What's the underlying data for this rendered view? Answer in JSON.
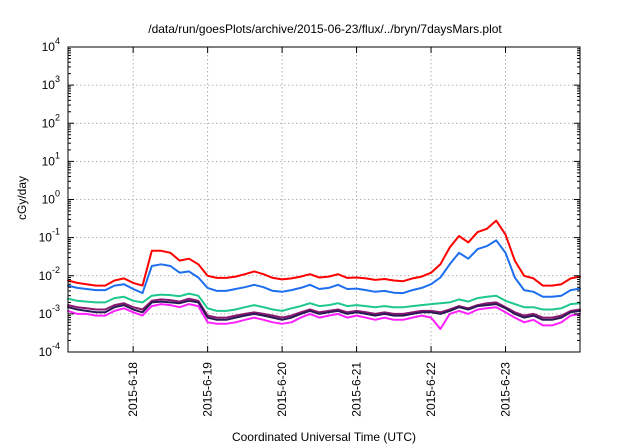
{
  "chart_data": {
    "type": "line",
    "title": "/data/run/goesPlots/archive/2015-06-23/flux/../bryn/7daysMars.plot",
    "xlabel": "Coordinated Universal Time (UTC)",
    "ylabel": "cGy/day",
    "yscale": "log",
    "ylim": [
      0.0001,
      10000
    ],
    "y_ticks": [
      {
        "value": 0.0001,
        "base": "10",
        "exp": "-4"
      },
      {
        "value": 0.001,
        "base": "10",
        "exp": "-3"
      },
      {
        "value": 0.01,
        "base": "10",
        "exp": "-2"
      },
      {
        "value": 0.1,
        "base": "10",
        "exp": "-1"
      },
      {
        "value": 1,
        "base": "10",
        "exp": "0"
      },
      {
        "value": 10,
        "base": "10",
        "exp": "1"
      },
      {
        "value": 100,
        "base": "10",
        "exp": "2"
      },
      {
        "value": 1000,
        "base": "10",
        "exp": "3"
      },
      {
        "value": 10000,
        "base": "10",
        "exp": "4"
      }
    ],
    "xlim": [
      "2015-06-17T03:00",
      "2015-06-24T00:00"
    ],
    "x_ticks": [
      "2015-6-18",
      "2015-6-19",
      "2015-6-20",
      "2015-6-21",
      "2015-6-22",
      "2015-6-23"
    ],
    "x_tick_dates": [
      "2015-06-18T00:00",
      "2015-06-19T00:00",
      "2015-06-20T00:00",
      "2015-06-21T00:00",
      "2015-06-22T00:00",
      "2015-06-23T00:00"
    ],
    "grid": true,
    "x": [
      "2015-06-17T03:00",
      "2015-06-17T06:00",
      "2015-06-17T09:00",
      "2015-06-17T12:00",
      "2015-06-17T15:00",
      "2015-06-17T18:00",
      "2015-06-17T21:00",
      "2015-06-18T00:00",
      "2015-06-18T03:00",
      "2015-06-18T06:00",
      "2015-06-18T09:00",
      "2015-06-18T12:00",
      "2015-06-18T15:00",
      "2015-06-18T18:00",
      "2015-06-18T21:00",
      "2015-06-19T00:00",
      "2015-06-19T03:00",
      "2015-06-19T06:00",
      "2015-06-19T09:00",
      "2015-06-19T12:00",
      "2015-06-19T15:00",
      "2015-06-19T18:00",
      "2015-06-19T21:00",
      "2015-06-20T00:00",
      "2015-06-20T03:00",
      "2015-06-20T06:00",
      "2015-06-20T09:00",
      "2015-06-20T12:00",
      "2015-06-20T15:00",
      "2015-06-20T18:00",
      "2015-06-20T21:00",
      "2015-06-21T00:00",
      "2015-06-21T03:00",
      "2015-06-21T06:00",
      "2015-06-21T09:00",
      "2015-06-21T12:00",
      "2015-06-21T15:00",
      "2015-06-21T18:00",
      "2015-06-21T21:00",
      "2015-06-22T00:00",
      "2015-06-22T03:00",
      "2015-06-22T06:00",
      "2015-06-22T09:00",
      "2015-06-22T12:00",
      "2015-06-22T15:00",
      "2015-06-22T18:00",
      "2015-06-22T21:00",
      "2015-06-23T00:00",
      "2015-06-23T03:00",
      "2015-06-23T06:00",
      "2015-06-23T09:00",
      "2015-06-23T12:00",
      "2015-06-23T15:00",
      "2015-06-23T18:00",
      "2015-06-23T21:00",
      "2015-06-24T00:00"
    ],
    "series": [
      {
        "color": "#ff0000",
        "values": [
          0.0075,
          0.0065,
          0.006,
          0.0055,
          0.0055,
          0.0075,
          0.0085,
          0.0065,
          0.0055,
          0.045,
          0.045,
          0.04,
          0.025,
          0.028,
          0.02,
          0.01,
          0.0088,
          0.0088,
          0.0095,
          0.011,
          0.013,
          0.011,
          0.0088,
          0.008,
          0.0085,
          0.0095,
          0.011,
          0.009,
          0.0095,
          0.011,
          0.0088,
          0.009,
          0.0085,
          0.0078,
          0.0082,
          0.0075,
          0.0072,
          0.0085,
          0.0095,
          0.012,
          0.02,
          0.055,
          0.11,
          0.075,
          0.14,
          0.17,
          0.28,
          0.12,
          0.025,
          0.01,
          0.0085,
          0.0055,
          0.0055,
          0.006,
          0.0085,
          0.0095
        ]
      },
      {
        "color": "#1e6ef0",
        "values": [
          0.0055,
          0.0048,
          0.0045,
          0.0042,
          0.0042,
          0.0055,
          0.006,
          0.0045,
          0.0035,
          0.018,
          0.02,
          0.018,
          0.012,
          0.013,
          0.009,
          0.0048,
          0.004,
          0.004,
          0.0045,
          0.005,
          0.0058,
          0.005,
          0.004,
          0.0038,
          0.0042,
          0.0048,
          0.0058,
          0.0045,
          0.0048,
          0.0058,
          0.0045,
          0.0046,
          0.0042,
          0.0038,
          0.004,
          0.0036,
          0.0035,
          0.0042,
          0.0048,
          0.006,
          0.009,
          0.02,
          0.04,
          0.028,
          0.05,
          0.06,
          0.085,
          0.04,
          0.009,
          0.0042,
          0.0038,
          0.0028,
          0.0028,
          0.003,
          0.0042,
          0.0046
        ]
      },
      {
        "color": "#1ec88c",
        "values": [
          0.0025,
          0.0022,
          0.0021,
          0.002,
          0.002,
          0.0026,
          0.0028,
          0.0022,
          0.002,
          0.003,
          0.0032,
          0.0031,
          0.0029,
          0.0034,
          0.003,
          0.0014,
          0.0012,
          0.0012,
          0.0013,
          0.0015,
          0.0017,
          0.0015,
          0.0013,
          0.0012,
          0.0014,
          0.0016,
          0.0019,
          0.0016,
          0.0017,
          0.0019,
          0.0016,
          0.0017,
          0.0016,
          0.0015,
          0.0016,
          0.0015,
          0.0015,
          0.0016,
          0.0017,
          0.0018,
          0.0019,
          0.002,
          0.0024,
          0.0021,
          0.0026,
          0.0028,
          0.003,
          0.0022,
          0.0018,
          0.0015,
          0.0015,
          0.0013,
          0.0013,
          0.0014,
          0.0018,
          0.0019
        ]
      },
      {
        "color": "#8a1870",
        "values": [
          0.0017,
          0.0015,
          0.0014,
          0.0013,
          0.0013,
          0.0017,
          0.0019,
          0.0015,
          0.0013,
          0.0022,
          0.0024,
          0.0023,
          0.0021,
          0.0025,
          0.0022,
          0.0009,
          0.0008,
          0.0008,
          0.0009,
          0.001,
          0.0011,
          0.001,
          0.0009,
          0.0008,
          0.0009,
          0.0011,
          0.0013,
          0.0011,
          0.0012,
          0.0013,
          0.0011,
          0.0012,
          0.0011,
          0.001,
          0.0011,
          0.001,
          0.001,
          0.0011,
          0.0012,
          0.0012,
          0.0011,
          0.0013,
          0.0016,
          0.0014,
          0.0017,
          0.0019,
          0.002,
          0.0015,
          0.0011,
          0.0009,
          0.001,
          0.0008,
          0.0008,
          0.0009,
          0.0012,
          0.0013
        ]
      },
      {
        "color": "#2a1a55",
        "values": [
          0.0015,
          0.0013,
          0.0012,
          0.0011,
          0.0011,
          0.0015,
          0.0017,
          0.0013,
          0.0011,
          0.002,
          0.0021,
          0.002,
          0.0019,
          0.0022,
          0.002,
          0.0008,
          0.0007,
          0.0007,
          0.0008,
          0.0009,
          0.001,
          0.0009,
          0.0008,
          0.0007,
          0.0008,
          0.001,
          0.0012,
          0.001,
          0.0011,
          0.0012,
          0.001,
          0.0011,
          0.001,
          0.0009,
          0.001,
          0.0009,
          0.0009,
          0.001,
          0.0011,
          0.0011,
          0.001,
          0.0012,
          0.0015,
          0.0013,
          0.0016,
          0.0017,
          0.0018,
          0.0014,
          0.001,
          0.0008,
          0.0009,
          0.0007,
          0.0007,
          0.0008,
          0.0011,
          0.0012
        ]
      },
      {
        "color": "#ff20ff",
        "values": [
          0.0012,
          0.001,
          0.001,
          0.0009,
          0.0009,
          0.0012,
          0.0014,
          0.0011,
          0.0009,
          0.0016,
          0.0018,
          0.0017,
          0.0015,
          0.0018,
          0.0016,
          0.0006,
          0.00055,
          0.00055,
          0.0006,
          0.0007,
          0.0008,
          0.0007,
          0.0006,
          0.00055,
          0.0006,
          0.0008,
          0.001,
          0.0008,
          0.0009,
          0.001,
          0.0008,
          0.0009,
          0.0008,
          0.0007,
          0.0008,
          0.0007,
          0.0007,
          0.0008,
          0.0009,
          0.0008,
          0.0004,
          0.001,
          0.0012,
          0.001,
          0.0013,
          0.0014,
          0.0015,
          0.0011,
          0.0008,
          0.0006,
          0.0007,
          0.0005,
          0.0005,
          0.0006,
          0.0009,
          0.001
        ]
      }
    ]
  }
}
